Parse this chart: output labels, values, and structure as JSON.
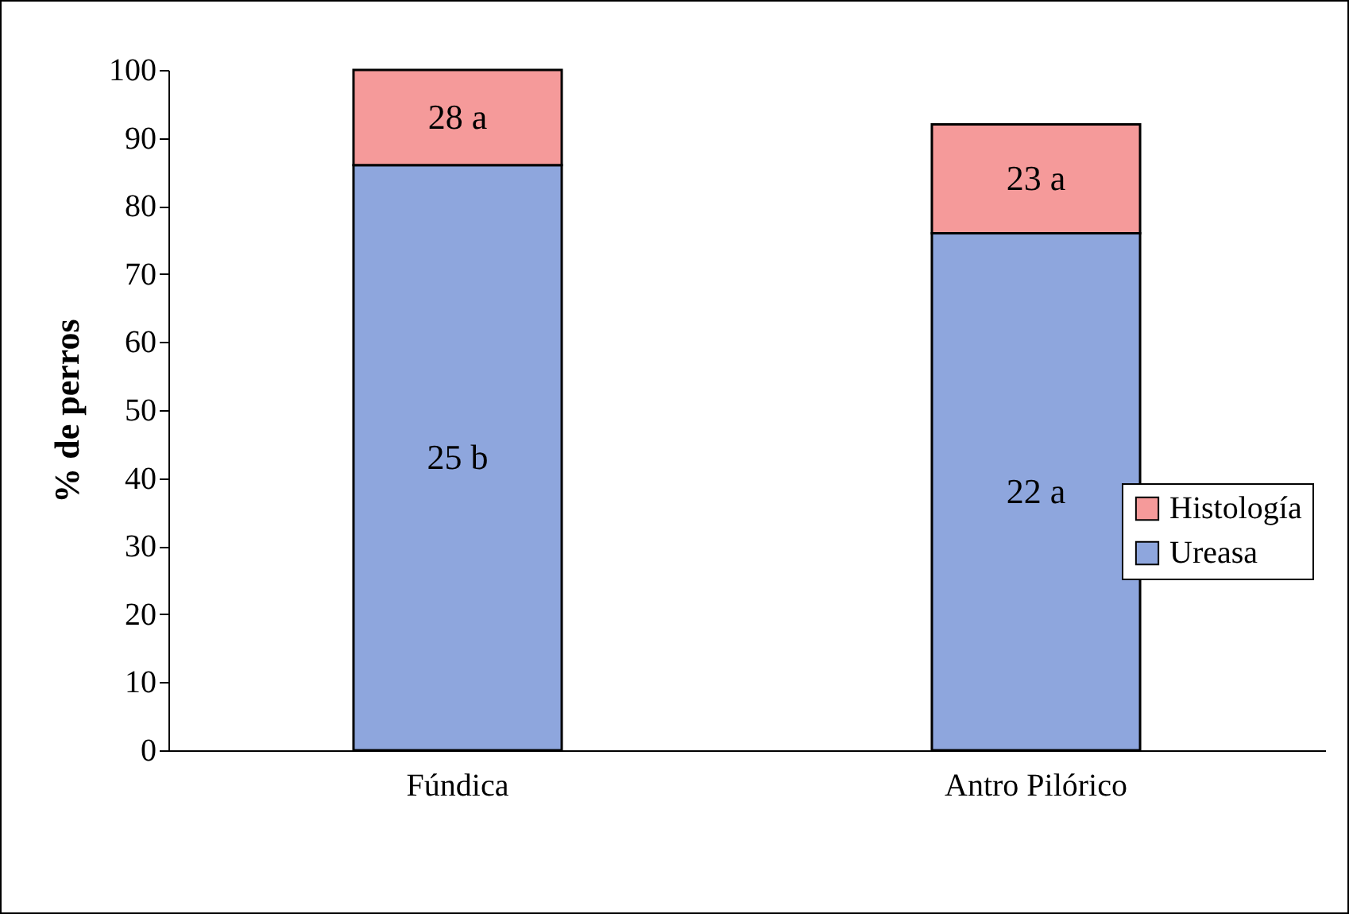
{
  "chart_data": {
    "type": "bar",
    "stacked": true,
    "ylabel": "% de perros",
    "categories": [
      "Fúndica",
      "Antro Pilórico"
    ],
    "series": [
      {
        "name": "Ureasa",
        "color": "#8ea6dd",
        "values": [
          86,
          76
        ]
      },
      {
        "name": "Histología",
        "color": "#f59a9a",
        "values": [
          14,
          16
        ]
      }
    ],
    "annotations": [
      "25 b",
      "22 a",
      "28 a",
      "23 a"
    ],
    "ylim": [
      0,
      100
    ],
    "yticks": [
      0,
      10,
      20,
      30,
      40,
      50,
      60,
      70,
      80,
      90,
      100
    ],
    "legend": "right"
  }
}
